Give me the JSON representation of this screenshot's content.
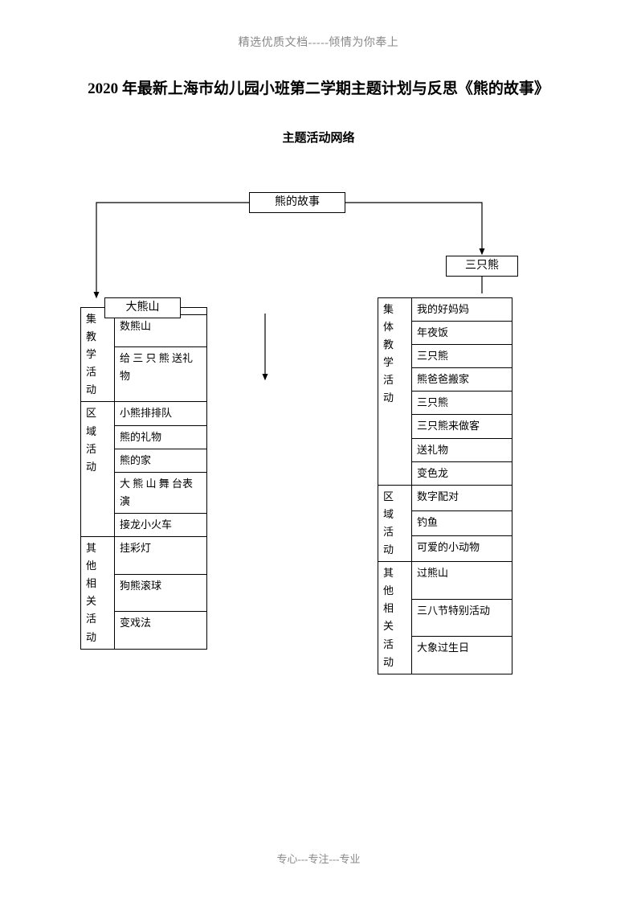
{
  "header": "精选优质文档-----倾情为你奉上",
  "title": "2020 年最新上海市幼儿园小班第二学期主题计划与反思《熊的故事》",
  "subtitle": "主题活动网络",
  "footer": "专心---专注---专业",
  "root": "熊的故事",
  "branch_right": "三只熊",
  "branch_left": "大熊山",
  "left_table": {
    "sections": [
      {
        "label": "集\n教 学\n活 动",
        "rows": [
          "",
          "数熊山",
          "给 三 只 熊 送礼物"
        ]
      },
      {
        "label": "区 域\n活 动",
        "rows": [
          "小熊排排队",
          "熊的礼物",
          "熊的家",
          "大 熊 山 舞 台表演",
          "接龙小火车"
        ]
      },
      {
        "label": "其 他\n相 关\n活 动",
        "rows": [
          "挂彩灯",
          "狗熊滚球",
          "变戏法"
        ]
      }
    ]
  },
  "right_table": {
    "sections": [
      {
        "label": "集 体\n教 学\n活 动",
        "rows": [
          "我的好妈妈",
          "年夜饭",
          "三只熊",
          "熊爸爸搬家",
          "三只熊",
          "三只熊来做客",
          "送礼物",
          "变色龙"
        ]
      },
      {
        "label": "区 域\n活 动",
        "rows": [
          "数字配对",
          "钓鱼",
          "可爱的小动物"
        ]
      },
      {
        "label": "其 他\n相 关\n活 动",
        "rows": [
          "过熊山",
          "三八节特别活动",
          "大象过生日"
        ]
      }
    ]
  },
  "colors": {
    "text": "#000000",
    "muted": "#888888",
    "line": "#000000"
  }
}
